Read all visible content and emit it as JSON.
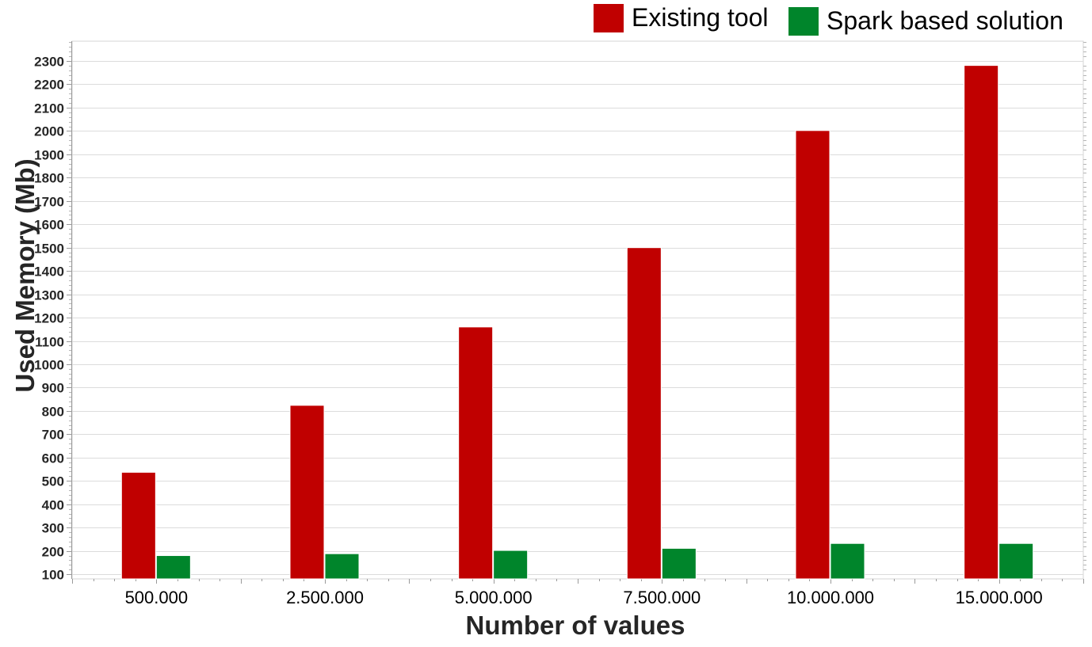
{
  "legend": {
    "existing_label": "Existing tool",
    "spark_label": "Spark based solution"
  },
  "chart_data": {
    "type": "bar",
    "title": "",
    "xlabel": "Number of values",
    "ylabel": "Used Memory (Mb)",
    "categories": [
      "500.000",
      "2.500.000",
      "5.000.000",
      "7.500.000",
      "10.000.000",
      "15.000.000"
    ],
    "series": [
      {
        "name": "Existing tool",
        "color": "#c00000",
        "values": [
          537,
          824,
          1160,
          1500,
          2002,
          2281
        ]
      },
      {
        "name": "Spark based solution",
        "color": "#00852b",
        "values": [
          180,
          188,
          202,
          211,
          232,
          232
        ]
      }
    ],
    "ylim": [
      80,
      2385
    ],
    "yticks": [
      100,
      200,
      300,
      400,
      500,
      600,
      700,
      800,
      900,
      1000,
      1100,
      1200,
      1300,
      1400,
      1500,
      1600,
      1700,
      1800,
      1900,
      2000,
      2100,
      2200,
      2300
    ],
    "grid": true,
    "legend_position": "top-right"
  }
}
